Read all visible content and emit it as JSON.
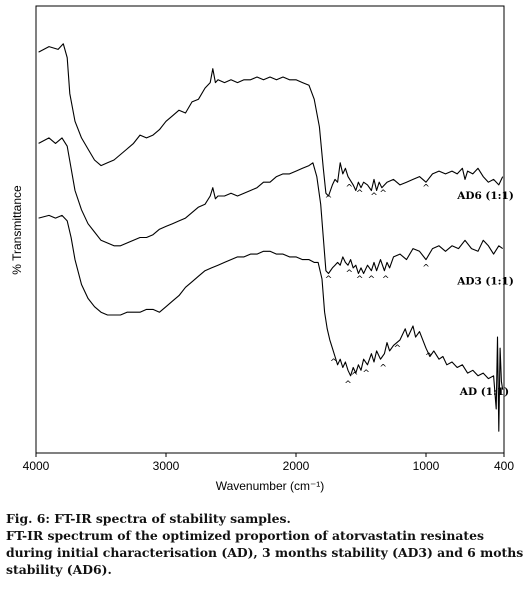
{
  "chart_data": {
    "type": "line",
    "xlabel": "Wavenumber (cm⁻¹)",
    "ylabel": "% Transmittance",
    "xlim": [
      4000,
      400
    ],
    "x_reversed": true,
    "xticks": [
      4000,
      3000,
      2000,
      1000,
      400
    ],
    "yticks": [],
    "grid": false,
    "series": [
      {
        "name": "AD6 (1:1)",
        "points": [
          [
            3980,
            0.97
          ],
          [
            3900,
            0.99
          ],
          [
            3830,
            0.98
          ],
          [
            3790,
            1.0
          ],
          [
            3760,
            0.95
          ],
          [
            3740,
            0.82
          ],
          [
            3700,
            0.72
          ],
          [
            3650,
            0.66
          ],
          [
            3600,
            0.62
          ],
          [
            3550,
            0.58
          ],
          [
            3500,
            0.56
          ],
          [
            3450,
            0.57
          ],
          [
            3400,
            0.58
          ],
          [
            3350,
            0.6
          ],
          [
            3300,
            0.62
          ],
          [
            3250,
            0.64
          ],
          [
            3200,
            0.67
          ],
          [
            3150,
            0.66
          ],
          [
            3100,
            0.67
          ],
          [
            3050,
            0.69
          ],
          [
            3000,
            0.72
          ],
          [
            2950,
            0.74
          ],
          [
            2900,
            0.76
          ],
          [
            2850,
            0.75
          ],
          [
            2800,
            0.79
          ],
          [
            2750,
            0.8
          ],
          [
            2700,
            0.84
          ],
          [
            2660,
            0.86
          ],
          [
            2640,
            0.91
          ],
          [
            2620,
            0.86
          ],
          [
            2600,
            0.87
          ],
          [
            2550,
            0.86
          ],
          [
            2500,
            0.87
          ],
          [
            2450,
            0.86
          ],
          [
            2400,
            0.87
          ],
          [
            2350,
            0.87
          ],
          [
            2300,
            0.88
          ],
          [
            2250,
            0.87
          ],
          [
            2200,
            0.88
          ],
          [
            2150,
            0.87
          ],
          [
            2100,
            0.88
          ],
          [
            2050,
            0.87
          ],
          [
            2000,
            0.87
          ],
          [
            1950,
            0.86
          ],
          [
            1900,
            0.85
          ],
          [
            1860,
            0.8
          ],
          [
            1820,
            0.7
          ],
          [
            1790,
            0.55
          ],
          [
            1770,
            0.46
          ],
          [
            1750,
            0.45
          ],
          [
            1720,
            0.49
          ],
          [
            1700,
            0.51
          ],
          [
            1680,
            0.5
          ],
          [
            1660,
            0.57
          ],
          [
            1640,
            0.53
          ],
          [
            1620,
            0.55
          ],
          [
            1600,
            0.52
          ],
          [
            1560,
            0.49
          ],
          [
            1540,
            0.47
          ],
          [
            1520,
            0.5
          ],
          [
            1500,
            0.48
          ],
          [
            1480,
            0.5
          ],
          [
            1450,
            0.49
          ],
          [
            1420,
            0.47
          ],
          [
            1400,
            0.51
          ],
          [
            1380,
            0.47
          ],
          [
            1360,
            0.5
          ],
          [
            1340,
            0.48
          ],
          [
            1300,
            0.5
          ],
          [
            1250,
            0.51
          ],
          [
            1200,
            0.49
          ],
          [
            1150,
            0.5
          ],
          [
            1100,
            0.51
          ],
          [
            1050,
            0.52
          ],
          [
            1000,
            0.5
          ],
          [
            950,
            0.53
          ],
          [
            900,
            0.54
          ],
          [
            850,
            0.53
          ],
          [
            800,
            0.54
          ],
          [
            760,
            0.53
          ],
          [
            720,
            0.55
          ],
          [
            700,
            0.51
          ],
          [
            680,
            0.54
          ],
          [
            640,
            0.53
          ],
          [
            600,
            0.55
          ],
          [
            560,
            0.52
          ],
          [
            520,
            0.5
          ],
          [
            480,
            0.51
          ],
          [
            440,
            0.49
          ],
          [
            410,
            0.52
          ]
        ]
      },
      {
        "name": "AD3 (1:1)",
        "points": [
          [
            3980,
            0.64
          ],
          [
            3900,
            0.66
          ],
          [
            3850,
            0.64
          ],
          [
            3800,
            0.66
          ],
          [
            3760,
            0.63
          ],
          [
            3730,
            0.55
          ],
          [
            3700,
            0.47
          ],
          [
            3650,
            0.4
          ],
          [
            3600,
            0.35
          ],
          [
            3550,
            0.32
          ],
          [
            3500,
            0.29
          ],
          [
            3450,
            0.28
          ],
          [
            3400,
            0.27
          ],
          [
            3350,
            0.27
          ],
          [
            3300,
            0.28
          ],
          [
            3250,
            0.29
          ],
          [
            3200,
            0.3
          ],
          [
            3150,
            0.3
          ],
          [
            3100,
            0.31
          ],
          [
            3050,
            0.33
          ],
          [
            3000,
            0.34
          ],
          [
            2950,
            0.35
          ],
          [
            2900,
            0.36
          ],
          [
            2850,
            0.37
          ],
          [
            2800,
            0.39
          ],
          [
            2750,
            0.41
          ],
          [
            2700,
            0.42
          ],
          [
            2660,
            0.45
          ],
          [
            2640,
            0.48
          ],
          [
            2620,
            0.44
          ],
          [
            2600,
            0.45
          ],
          [
            2550,
            0.45
          ],
          [
            2500,
            0.46
          ],
          [
            2450,
            0.45
          ],
          [
            2400,
            0.46
          ],
          [
            2350,
            0.47
          ],
          [
            2300,
            0.48
          ],
          [
            2250,
            0.5
          ],
          [
            2200,
            0.5
          ],
          [
            2150,
            0.52
          ],
          [
            2100,
            0.53
          ],
          [
            2050,
            0.53
          ],
          [
            2000,
            0.54
          ],
          [
            1950,
            0.55
          ],
          [
            1900,
            0.56
          ],
          [
            1870,
            0.57
          ],
          [
            1840,
            0.52
          ],
          [
            1810,
            0.42
          ],
          [
            1790,
            0.3
          ],
          [
            1770,
            0.18
          ],
          [
            1750,
            0.17
          ],
          [
            1720,
            0.19
          ],
          [
            1700,
            0.2
          ],
          [
            1680,
            0.21
          ],
          [
            1660,
            0.2
          ],
          [
            1640,
            0.23
          ],
          [
            1620,
            0.21
          ],
          [
            1600,
            0.2
          ],
          [
            1580,
            0.22
          ],
          [
            1560,
            0.19
          ],
          [
            1540,
            0.2
          ],
          [
            1520,
            0.17
          ],
          [
            1500,
            0.19
          ],
          [
            1480,
            0.17
          ],
          [
            1450,
            0.2
          ],
          [
            1420,
            0.18
          ],
          [
            1400,
            0.21
          ],
          [
            1380,
            0.18
          ],
          [
            1350,
            0.22
          ],
          [
            1320,
            0.18
          ],
          [
            1300,
            0.21
          ],
          [
            1280,
            0.19
          ],
          [
            1250,
            0.23
          ],
          [
            1200,
            0.24
          ],
          [
            1150,
            0.22
          ],
          [
            1100,
            0.26
          ],
          [
            1050,
            0.25
          ],
          [
            1000,
            0.22
          ],
          [
            950,
            0.26
          ],
          [
            900,
            0.27
          ],
          [
            850,
            0.25
          ],
          [
            800,
            0.27
          ],
          [
            750,
            0.26
          ],
          [
            700,
            0.29
          ],
          [
            650,
            0.26
          ],
          [
            600,
            0.25
          ],
          [
            560,
            0.29
          ],
          [
            520,
            0.27
          ],
          [
            480,
            0.24
          ],
          [
            440,
            0.27
          ],
          [
            410,
            0.26
          ]
        ]
      },
      {
        "name": "AD (1:1)",
        "points": [
          [
            3980,
            0.37
          ],
          [
            3900,
            0.38
          ],
          [
            3850,
            0.37
          ],
          [
            3800,
            0.38
          ],
          [
            3760,
            0.36
          ],
          [
            3730,
            0.3
          ],
          [
            3700,
            0.22
          ],
          [
            3650,
            0.13
          ],
          [
            3600,
            0.08
          ],
          [
            3550,
            0.05
          ],
          [
            3500,
            0.03
          ],
          [
            3450,
            0.02
          ],
          [
            3400,
            0.02
          ],
          [
            3350,
            0.02
          ],
          [
            3300,
            0.03
          ],
          [
            3250,
            0.03
          ],
          [
            3200,
            0.03
          ],
          [
            3150,
            0.04
          ],
          [
            3100,
            0.04
          ],
          [
            3050,
            0.03
          ],
          [
            3000,
            0.05
          ],
          [
            2950,
            0.07
          ],
          [
            2900,
            0.09
          ],
          [
            2850,
            0.12
          ],
          [
            2800,
            0.14
          ],
          [
            2750,
            0.16
          ],
          [
            2700,
            0.18
          ],
          [
            2650,
            0.19
          ],
          [
            2600,
            0.2
          ],
          [
            2550,
            0.21
          ],
          [
            2500,
            0.22
          ],
          [
            2450,
            0.23
          ],
          [
            2400,
            0.23
          ],
          [
            2350,
            0.24
          ],
          [
            2300,
            0.24
          ],
          [
            2250,
            0.25
          ],
          [
            2200,
            0.25
          ],
          [
            2150,
            0.24
          ],
          [
            2100,
            0.24
          ],
          [
            2050,
            0.23
          ],
          [
            2000,
            0.23
          ],
          [
            1950,
            0.22
          ],
          [
            1900,
            0.22
          ],
          [
            1860,
            0.21
          ],
          [
            1830,
            0.21
          ],
          [
            1800,
            0.15
          ],
          [
            1780,
            0.03
          ],
          [
            1760,
            -0.03
          ],
          [
            1740,
            -0.07
          ],
          [
            1720,
            -0.1
          ],
          [
            1700,
            -0.13
          ],
          [
            1680,
            -0.16
          ],
          [
            1660,
            -0.14
          ],
          [
            1640,
            -0.17
          ],
          [
            1620,
            -0.15
          ],
          [
            1600,
            -0.18
          ],
          [
            1580,
            -0.2
          ],
          [
            1560,
            -0.17
          ],
          [
            1540,
            -0.19
          ],
          [
            1520,
            -0.16
          ],
          [
            1500,
            -0.18
          ],
          [
            1480,
            -0.14
          ],
          [
            1450,
            -0.16
          ],
          [
            1420,
            -0.12
          ],
          [
            1400,
            -0.15
          ],
          [
            1380,
            -0.11
          ],
          [
            1350,
            -0.14
          ],
          [
            1320,
            -0.12
          ],
          [
            1300,
            -0.08
          ],
          [
            1280,
            -0.11
          ],
          [
            1250,
            -0.09
          ],
          [
            1200,
            -0.07
          ],
          [
            1160,
            -0.03
          ],
          [
            1140,
            -0.06
          ],
          [
            1100,
            -0.02
          ],
          [
            1080,
            -0.06
          ],
          [
            1050,
            -0.04
          ],
          [
            1000,
            -0.1
          ],
          [
            970,
            -0.13
          ],
          [
            940,
            -0.11
          ],
          [
            900,
            -0.14
          ],
          [
            870,
            -0.13
          ],
          [
            840,
            -0.16
          ],
          [
            800,
            -0.15
          ],
          [
            760,
            -0.17
          ],
          [
            720,
            -0.16
          ],
          [
            680,
            -0.19
          ],
          [
            640,
            -0.18
          ],
          [
            600,
            -0.2
          ],
          [
            560,
            -0.19
          ],
          [
            520,
            -0.21
          ],
          [
            480,
            -0.2
          ],
          [
            460,
            -0.32
          ],
          [
            450,
            -0.06
          ],
          [
            440,
            -0.4
          ],
          [
            430,
            -0.1
          ],
          [
            420,
            -0.22
          ],
          [
            410,
            -0.25
          ]
        ]
      }
    ],
    "series_labels": [
      {
        "text": "AD6 (1:1)",
        "x": 760,
        "y": 0.44
      },
      {
        "text": "AD3 (1:1)",
        "x": 760,
        "y": 0.13
      },
      {
        "text": "AD (1:1)",
        "x": 740,
        "y": -0.27
      }
    ],
    "peak_markers": [
      {
        "symbol": "^",
        "x": 1750,
        "y": 0.43
      },
      {
        "symbol": "^",
        "x": 1590,
        "y": 0.47
      },
      {
        "symbol": "^",
        "x": 1510,
        "y": 0.45
      },
      {
        "symbol": "^",
        "x": 1400,
        "y": 0.44
      },
      {
        "symbol": "^",
        "x": 1330,
        "y": 0.45
      },
      {
        "symbol": "^",
        "x": 1000,
        "y": 0.47
      },
      {
        "symbol": "^",
        "x": 1750,
        "y": 0.14
      },
      {
        "symbol": "^",
        "x": 1590,
        "y": 0.16
      },
      {
        "symbol": "^",
        "x": 1510,
        "y": 0.14
      },
      {
        "symbol": "^",
        "x": 1420,
        "y": 0.14
      },
      {
        "symbol": "^",
        "x": 1310,
        "y": 0.14
      },
      {
        "symbol": "^",
        "x": 1000,
        "y": 0.18
      },
      {
        "symbol": "^",
        "x": 1710,
        "y": -0.16
      },
      {
        "symbol": "^",
        "x": 1600,
        "y": -0.24
      },
      {
        "symbol": "^",
        "x": 1550,
        "y": -0.21
      },
      {
        "symbol": "^",
        "x": 1460,
        "y": -0.2
      },
      {
        "symbol": "^",
        "x": 1330,
        "y": -0.18
      },
      {
        "symbol": "^",
        "x": 1220,
        "y": -0.11
      },
      {
        "symbol": "^",
        "x": 980,
        "y": -0.14
      }
    ]
  },
  "caption": {
    "line1": "Fig. 6: FT-IR spectra of stability samples.",
    "line2": "FT-IR spectrum of the optimized proportion of atorvastatin resinates during initial characterisation (AD), 3 months stability (AD3) and 6 moths stability (AD6)."
  }
}
